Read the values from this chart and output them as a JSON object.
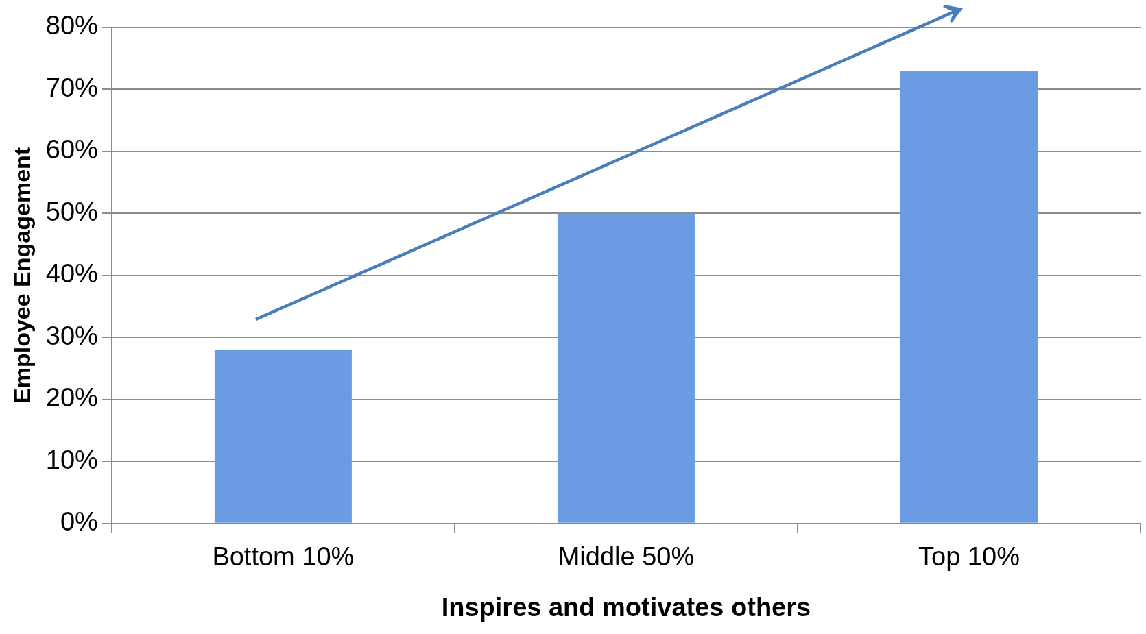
{
  "chart_data": {
    "type": "bar",
    "xlabel": "Inspires and motivates others",
    "ylabel": "Employee Engagement",
    "categories": [
      "Bottom 10%",
      "Middle 50%",
      "Top 10%"
    ],
    "values": [
      28,
      50,
      73
    ],
    "color": "#6b9be3",
    "ylim": [
      0,
      80
    ],
    "yticks": [
      {
        "value": 0,
        "label": "0%"
      },
      {
        "value": 10,
        "label": "10%"
      },
      {
        "value": 20,
        "label": "20%"
      },
      {
        "value": 30,
        "label": "30%"
      },
      {
        "value": 40,
        "label": "40%"
      },
      {
        "value": 50,
        "label": "50%"
      },
      {
        "value": 60,
        "label": "60%"
      },
      {
        "value": 70,
        "label": "70%"
      },
      {
        "value": 80,
        "label": "80%"
      }
    ],
    "grid": "y",
    "legend": false
  }
}
